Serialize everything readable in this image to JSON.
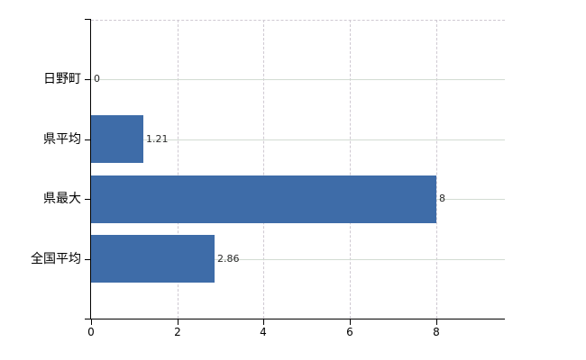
{
  "chart_data": {
    "type": "bar",
    "orientation": "horizontal",
    "title": "",
    "xlabel": "",
    "ylabel": "",
    "categories": [
      "日野町",
      "県平均",
      "県最大",
      "全国平均"
    ],
    "values": [
      0,
      1.21,
      8,
      2.86
    ],
    "value_labels": [
      "0",
      "1.21",
      "8",
      "2.86"
    ],
    "xticks": [
      0,
      2,
      4,
      6,
      8
    ],
    "xtick_labels": [
      "0",
      "2",
      "4",
      "6",
      "8"
    ],
    "xlim": [
      0,
      9.6
    ],
    "legend": false,
    "grid": true,
    "bar_color": "#3e6ca8",
    "grid_x_color": "#cfc9d2",
    "grid_y_color": "#d3dcd3",
    "axis_color": "#000000",
    "value_label_color": "#2a2a2a",
    "background_color": "#ffffff"
  }
}
